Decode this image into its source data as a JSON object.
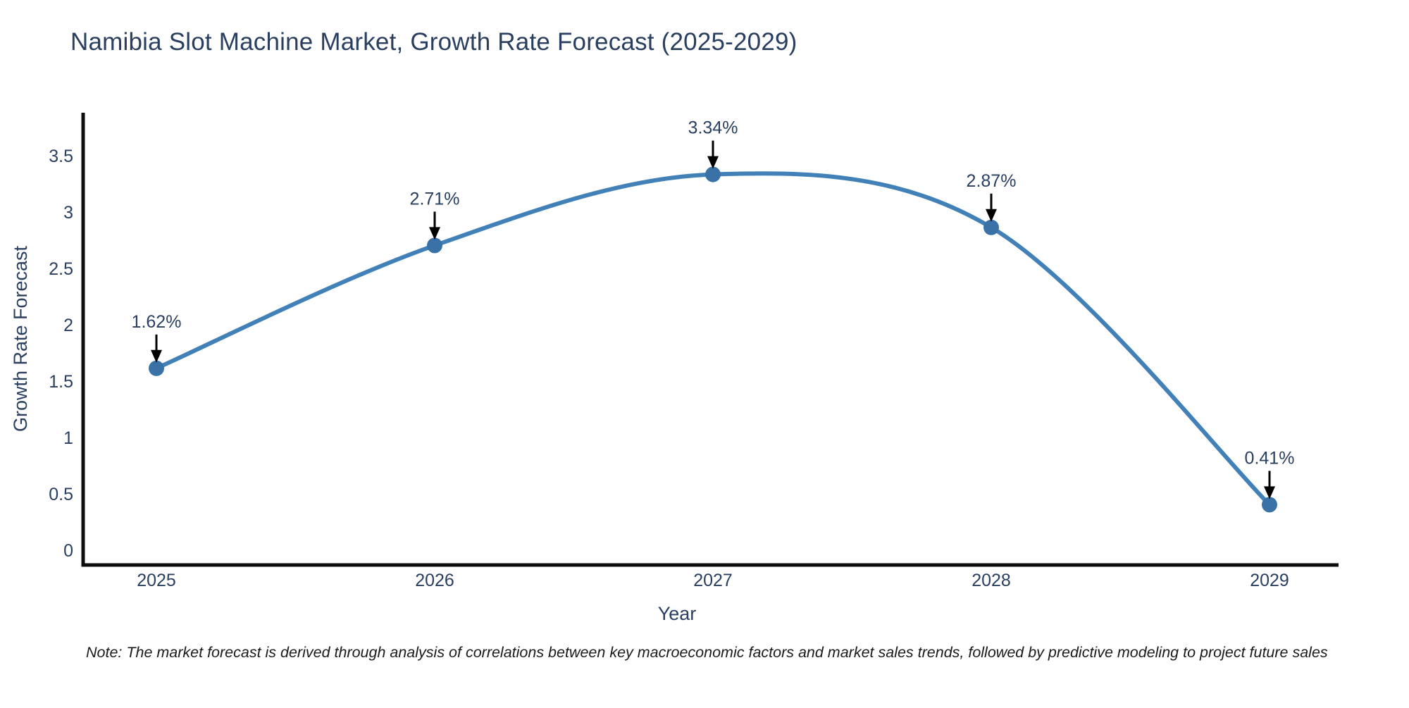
{
  "page": {
    "title": "Namibia Slot Machine Market, Growth Rate Forecast (2025-2029)",
    "note": "Note: The market forecast is derived through analysis of correlations between key macroeconomic factors and market sales trends, followed by predictive modeling to project future sales"
  },
  "chart_data": {
    "type": "line",
    "title": "Namibia Slot Machine Market, Growth Rate Forecast (2025-2029)",
    "x": [
      2025,
      2026,
      2027,
      2028,
      2029
    ],
    "x_tick_labels": [
      "2025",
      "2026",
      "2027",
      "2028",
      "2029"
    ],
    "series": [
      {
        "name": "Growth Rate Forecast",
        "values": [
          1.62,
          2.71,
          3.34,
          2.87,
          0.41
        ],
        "point_labels": [
          "1.62%",
          "2.71%",
          "3.34%",
          "2.87%",
          "0.41%"
        ]
      }
    ],
    "xlabel": "Year",
    "ylabel": "Growth Rate Forecast",
    "yticks": [
      0,
      0.5,
      1,
      1.5,
      2,
      2.5,
      3,
      3.5
    ],
    "ylim": [
      -0.13,
      3.9
    ],
    "grid": false,
    "legend": false,
    "line_shape": "spline",
    "colors": {
      "line": "#4181b8",
      "marker": "#3a72a8",
      "annotation_arrow": "#000000",
      "axis_line": "#0d0d0d",
      "text": "#2a3f5f"
    }
  }
}
